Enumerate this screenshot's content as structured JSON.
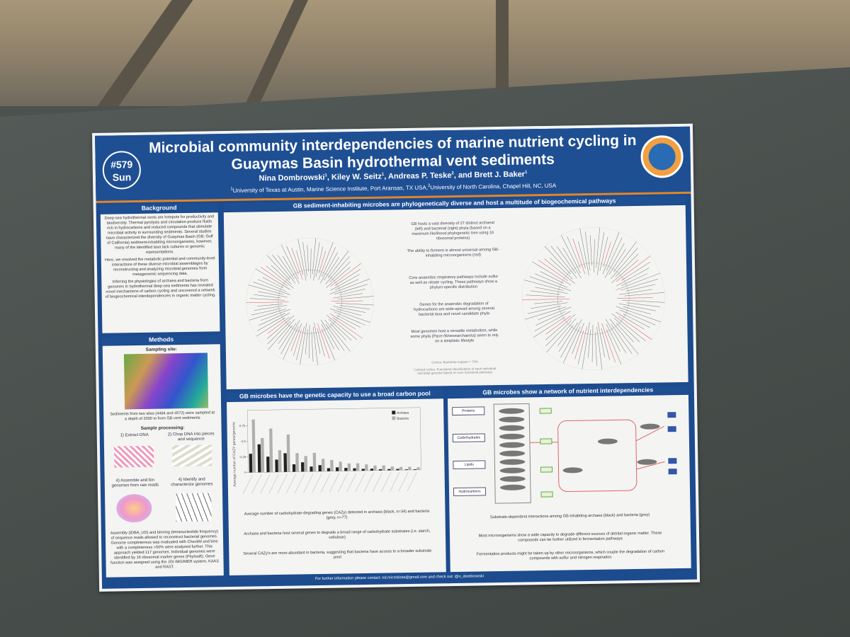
{
  "header": {
    "title": "Microbial community interdependencies of marine nutrient cycling in Guaymas Basin hydrothermal vent sediments",
    "badge": [
      "#579",
      "Sun"
    ],
    "authors": [
      {
        "name": "Nina Dombrowski",
        "aff": "1"
      },
      {
        "name": "Kiley W. Seitz",
        "aff": "1"
      },
      {
        "name": "Andreas P. Teske",
        "aff": "2"
      },
      {
        "name": "and Brett J. Baker",
        "aff": "1"
      }
    ],
    "affiliations": [
      {
        "num": "1",
        "text": "University of Texas at Austin, Marine Science Institute, Port Aransas, TX  USA,"
      },
      {
        "num": "2",
        "text": "University of North Carolina, Chapel Hill, NC, USA"
      }
    ]
  },
  "background": {
    "heading": "Background",
    "paragraphs": [
      "Deep-sea hydrothermal vents are hotspots for productivity and biodiversity. Thermal pyrolysis and circulation produce fluids rich in hydrocarbons and reduced compounds that stimulate microbial activity in surrounding sediments. Several studies have characterized the diversity of Guaymas Basin (GB; Gulf of California) sediment-inhabiting microorganisms, however, many of the identified taxa lack cultures or genomic representations.",
      "Here, we resolved the metabolic potential and community-level interactions of these diverse microbial assemblages by reconstructing and analyzing microbial genomes from metagenomic sequencing data.",
      "Inferring the physiologies of archaea and bacteria from genomes in hydrothermal deep-sea sediments has revealed novel mechanisms of carbon cycling and uncovered a network of biogeochemical interdependencies in organic matter cycling."
    ]
  },
  "methods": {
    "heading": "Methods",
    "site_label": "Sampling site:",
    "site_caption": "Sediments from two sites (4484 and 4572) were sampled at a depth of 2000 m from GB vent sediments",
    "processing_label": "Sample processing:",
    "steps": [
      "1) Extract DNA",
      "2) Chop DNA into pieces and sequence",
      "4) Assemble and bin genomes from raw reads",
      "4) Identify and characterize genomes"
    ],
    "text": "Assembly (IDBA_UD) and binning (tetranucleotide frequency) of sequence reads allowed to reconstruct bacterial genomes. Genome completeness was evaluated with CheckM and bins with a completeness >50% were analyzed further. This approach yielded 117 genomes. Individual genomes were identified by 16 ribosomal marker genes (Phylosift). Gene function was assigned using the JGI IMG/MER system, KAAS and RAST."
  },
  "phylogeny": {
    "heading": "GB sediment-inhabiting microbes are phylogenetically diverse and host a multitude of biogeochemical pathways",
    "notes": [
      "GB hosts a vast diversity of 27 distinct archaeal (left) and bacterial (right) phyla (based on a maximum likelihood phylogenetic tree using 16 ribosomal proteins)",
      "The ability to ferment is almost universal among GB-inhabiting microorganisms (red)",
      "Core anaerobic respiratory pathways include sulfur as well as nitrate cycling. These pathways show a phylum-specific distribution",
      "Genes for the anaerobic degradation of hydrocarbons are wide-spread among several bacterial taxa and novel candidate phyla",
      "Most genomes host a versatile metabolism, while some phyla (Pace-/Woesearchaeota) seem to rely on a simplistic lifestyle"
    ],
    "legend_notes": [
      "Circles: Bootstrap support > 70%",
      "Colored circles: Functional classification of each individual microbial genome based on core functional pathways"
    ]
  },
  "carbon": {
    "heading": "GB microbes have the genetic capacity to use a broad carbon pool",
    "chart_data": {
      "type": "bar",
      "y_label": "Average number of CAZY genes/genome",
      "categories": [
        null,
        null,
        null,
        null,
        null,
        null,
        null,
        null,
        null,
        null,
        null,
        null,
        null,
        null,
        null,
        null,
        null,
        null,
        null,
        null
      ],
      "series": [
        {
          "name": "Archaea",
          "color": "#222222",
          "values": [
            0.3,
            0.45,
            0.25,
            0.2,
            0.3,
            0.12,
            0.15,
            0.08,
            0.1,
            0.05,
            0.06,
            0.05,
            0.04,
            0.03,
            0.03,
            0.02,
            0.02,
            0.02,
            0.01,
            0.01
          ]
        },
        {
          "name": "Bacteria",
          "color": "#b0b0b0",
          "values": [
            0.85,
            0.55,
            0.7,
            0.35,
            0.6,
            0.3,
            0.25,
            0.3,
            0.2,
            0.18,
            0.15,
            0.12,
            0.12,
            0.1,
            0.08,
            0.08,
            0.06,
            0.05,
            0.05,
            0.04
          ]
        }
      ],
      "ylim": [
        0,
        1
      ],
      "yticks": [
        0,
        0.25,
        0.5,
        0.75
      ]
    },
    "captions": [
      "Average number of carbohydrate-degrading genes (CAZy) detected in archaea (black, n=34) and bacteria (grey, n=77)",
      "Archaea and bacteria host several genes to degrade a broad range of carbohydrate substrates (i.e. starch, cellulose)",
      "Several CAZy's are more abundant in bacteria, suggesting that bacteria have access to a broader substrate pool"
    ]
  },
  "network": {
    "heading": "GB microbes show a network of nutrient interdependencies",
    "substrates": [
      "Proteins",
      "Carbohydrates",
      "Lipids",
      "Hydrocarbons"
    ],
    "captions": [
      "Substrate-dependent interactions among GB-inhabiting archaea (black) and bacteria (grey)",
      "Most microorganisms show a wide capacity to degrade different sources of detrital organic matter. These compounds can be further utilized in fermentation pathways",
      "Fermentation products might be taken up by other microorganisms, which couple the degradation of carbon compounds with sulfur and nitrogen respiration"
    ]
  },
  "footer": "For further information please contact: nd.microbiota@gmail.com and check out: @n_dombrowski"
}
